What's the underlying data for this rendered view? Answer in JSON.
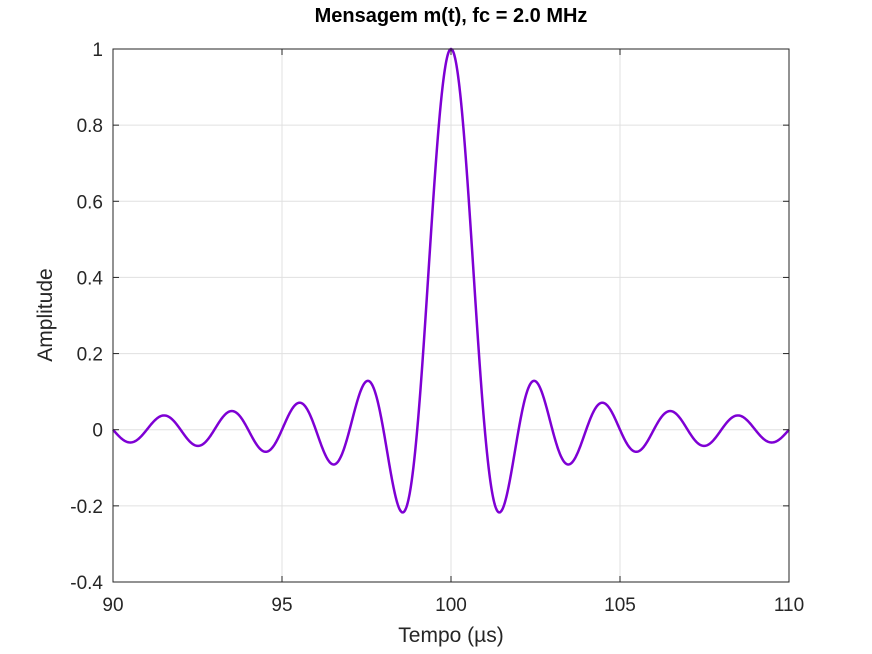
{
  "chart_data": {
    "type": "line",
    "title": "Mensagem m(t), fc = 2.0 MHz",
    "xlabel": "Tempo (µs)",
    "ylabel": "Amplitude",
    "xlim": [
      90,
      110
    ],
    "ylim": [
      -0.4,
      1
    ],
    "xticks": [
      90,
      95,
      100,
      105,
      110
    ],
    "yticks": [
      -0.4,
      -0.2,
      0,
      0.2,
      0.4,
      0.6,
      0.8,
      1
    ],
    "xtick_labels": [
      "90",
      "95",
      "100",
      "105",
      "110"
    ],
    "ytick_labels": [
      "-0.4",
      "-0.2",
      "0",
      "0.2",
      "0.4",
      "0.6",
      "0.8",
      "1"
    ],
    "grid": true,
    "series": [
      {
        "color": "#7e00d4",
        "function": "sinc",
        "center": 100,
        "zero_spacing": 1,
        "x_range": [
          90,
          110
        ],
        "peak": 1,
        "extrema": [
          {
            "x": 98.6,
            "y": -0.217
          },
          {
            "x": 97.55,
            "y": 0.128
          },
          {
            "x": 96.55,
            "y": -0.091
          },
          {
            "x": 95.55,
            "y": 0.071
          },
          {
            "x": 94.55,
            "y": -0.058
          },
          {
            "x": 93.55,
            "y": 0.049
          },
          {
            "x": 92.55,
            "y": -0.042
          },
          {
            "x": 91.55,
            "y": 0.037
          },
          {
            "x": 90.55,
            "y": -0.033
          }
        ]
      }
    ]
  }
}
